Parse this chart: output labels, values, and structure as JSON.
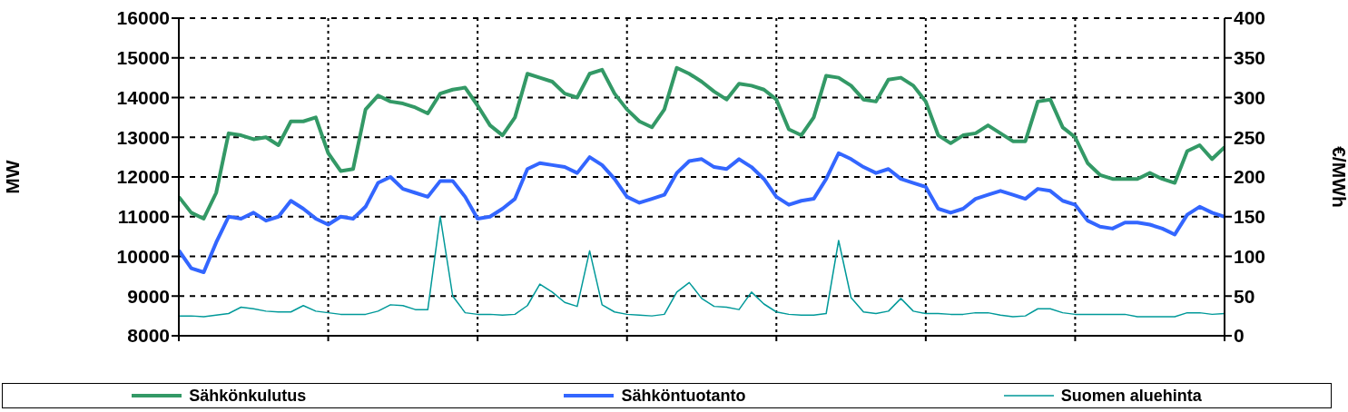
{
  "chart_data": {
    "type": "line",
    "ylabel": "MW",
    "y2label": "€/MWh",
    "categories": [
      null,
      null,
      null,
      null,
      null,
      null,
      null,
      null,
      null,
      null,
      null,
      null,
      null,
      null,
      null,
      null,
      null,
      null,
      null,
      null,
      null,
      null,
      null,
      null,
      null,
      null,
      null,
      null,
      null,
      null,
      null,
      null,
      null,
      null,
      null,
      null,
      null,
      null,
      null,
      null,
      null,
      null,
      null,
      null,
      null,
      null,
      null,
      null,
      null,
      null,
      null,
      null,
      null,
      null,
      null,
      null,
      null,
      null,
      null,
      null,
      null,
      null,
      null,
      null,
      null,
      null,
      null,
      null,
      null,
      null,
      null,
      null,
      null,
      null,
      null,
      null,
      null,
      null,
      null,
      null,
      null,
      null,
      null,
      null,
      null
    ],
    "series": [
      {
        "name": "Sähkönkulutus",
        "color": "#339966",
        "values": [
          11500,
          11100,
          10950,
          11600,
          13100,
          13050,
          12950,
          13000,
          12800,
          13400,
          13400,
          13500,
          12600,
          12150,
          12200,
          13700,
          14050,
          13900,
          13850,
          13750,
          13600,
          14100,
          14200,
          14250,
          13800,
          13300,
          13050,
          13500,
          14600,
          14500,
          14400,
          14100,
          14000,
          14600,
          14700,
          14100,
          13700,
          13400,
          13250,
          13700,
          14750,
          14600,
          14400,
          14150,
          13950,
          14350,
          14300,
          14200,
          13950,
          13200,
          13050,
          13500,
          14550,
          14500,
          14300,
          13950,
          13900,
          14450,
          14500,
          14300,
          13900,
          13050,
          12850,
          13050,
          13100,
          13300,
          13100,
          12900,
          12900,
          13900,
          13950,
          13250,
          13000,
          12350,
          12050,
          11950,
          11950,
          11950,
          12100,
          11950,
          11850,
          12650,
          12800,
          12450,
          12750
        ]
      },
      {
        "name": "Sähköntuotanto",
        "color": "#3366ff",
        "values": [
          10150,
          9700,
          9600,
          10350,
          11000,
          10950,
          11100,
          10900,
          11000,
          11400,
          11200,
          10950,
          10800,
          11000,
          10950,
          11250,
          11850,
          12000,
          11700,
          11600,
          11500,
          11900,
          11900,
          11500,
          10950,
          11000,
          11200,
          11450,
          12200,
          12350,
          12300,
          12250,
          12100,
          12500,
          12300,
          11950,
          11500,
          11350,
          11450,
          11550,
          12100,
          12400,
          12450,
          12250,
          12200,
          12450,
          12250,
          11950,
          11500,
          11300,
          11400,
          11450,
          11950,
          12600,
          12450,
          12250,
          12100,
          12200,
          11950,
          11850,
          11750,
          11200,
          11100,
          11200,
          11450,
          11550,
          11650,
          11550,
          11450,
          11700,
          11650,
          11400,
          11300,
          10900,
          10750,
          10700,
          10850,
          10850,
          10800,
          10700,
          10550,
          11050,
          11250,
          11100,
          11000
        ]
      },
      {
        "name": "Suomen aluehinta",
        "color": "#009999",
        "axis": "y2",
        "values": [
          25,
          25,
          24,
          26,
          28,
          36,
          34,
          31,
          30,
          30,
          38,
          31,
          29,
          27,
          27,
          27,
          31,
          39,
          38,
          33,
          33,
          150,
          50,
          29,
          27,
          27,
          26,
          27,
          38,
          65,
          55,
          42,
          37,
          107,
          39,
          30,
          27,
          26,
          25,
          27,
          55,
          67,
          47,
          37,
          36,
          33,
          55,
          40,
          30,
          27,
          26,
          26,
          28,
          120,
          48,
          30,
          28,
          31,
          47,
          31,
          28,
          28,
          27,
          27,
          29,
          29,
          26,
          24,
          25,
          34,
          34,
          29,
          27,
          27,
          27,
          27,
          27,
          24,
          24,
          24,
          24,
          29,
          29,
          27,
          28
        ]
      }
    ],
    "ylim": [
      8000,
      16000
    ],
    "yticks": [
      8000,
      9000,
      10000,
      11000,
      12000,
      13000,
      14000,
      15000,
      16000
    ],
    "y2lim": [
      0,
      400
    ],
    "y2ticks": [
      0,
      50,
      100,
      150,
      200,
      250,
      300,
      350,
      400
    ],
    "grid": true,
    "legend": "bottom",
    "marker": "none",
    "line_style": "solid"
  }
}
